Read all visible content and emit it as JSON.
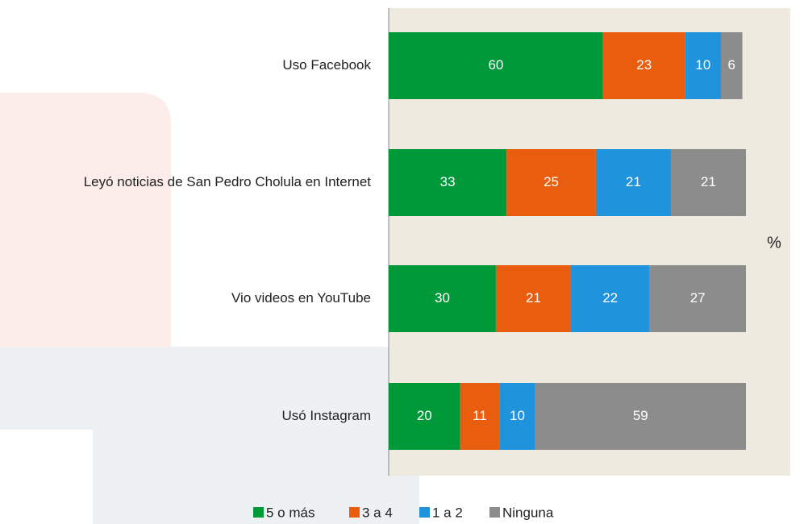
{
  "chart_data": {
    "type": "stacked_barh",
    "categories": [
      "Uso Facebook",
      "Leyó noticias de San Pedro Cholula en Internet",
      "Vio videos en YouTube",
      "Usó Instagram"
    ],
    "series": [
      {
        "name": "5 o más",
        "color": "#00993a",
        "values": [
          60,
          33,
          30,
          20
        ]
      },
      {
        "name": "3 a 4",
        "color": "#e95d0f",
        "values": [
          23,
          25,
          21,
          11
        ]
      },
      {
        "name": "1 a 2",
        "color": "#1f94dc",
        "values": [
          10,
          21,
          22,
          10
        ]
      },
      {
        "name": "Ninguna",
        "color": "#8c8c8c",
        "values": [
          6,
          21,
          27,
          59
        ]
      }
    ],
    "x_label": "%",
    "xlim": [
      0,
      100
    ]
  }
}
